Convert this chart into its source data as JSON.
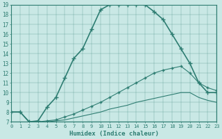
{
  "xlabel": "Humidex (Indice chaleur)",
  "xlim": [
    0,
    23
  ],
  "ylim": [
    7,
    19
  ],
  "yticks": [
    7,
    8,
    9,
    10,
    11,
    12,
    13,
    14,
    15,
    16,
    17,
    18,
    19
  ],
  "xticks": [
    0,
    1,
    2,
    3,
    4,
    5,
    6,
    7,
    8,
    9,
    10,
    11,
    12,
    13,
    14,
    15,
    16,
    17,
    18,
    19,
    20,
    21,
    22,
    23
  ],
  "bg_color": "#c9e8e5",
  "line_color": "#2e7d72",
  "series": [
    {
      "x": [
        0,
        1,
        2,
        3,
        4,
        5,
        6,
        7,
        8,
        9,
        10,
        11,
        12,
        13,
        14,
        15,
        16,
        17,
        18,
        19,
        20,
        21,
        22,
        23
      ],
      "y": [
        8,
        8,
        7,
        7.1,
        8.5,
        9.5,
        11.5,
        13.5,
        14.5,
        16.5,
        18.5,
        19,
        19,
        19,
        19,
        19,
        18.3,
        17.5,
        16,
        14.5,
        13,
        11,
        10,
        10
      ],
      "marker": "+",
      "markersize": 5,
      "linewidth": 1.2,
      "color": "#2e7d72"
    },
    {
      "x": [
        0,
        1,
        2,
        3,
        4,
        5,
        6,
        7,
        8,
        9,
        10,
        11,
        12,
        13,
        14,
        15,
        16,
        17,
        18,
        19,
        20,
        21,
        22,
        23
      ],
      "y": [
        8,
        8,
        7,
        7,
        7.1,
        7.2,
        7.5,
        7.8,
        8.2,
        8.6,
        9.0,
        9.5,
        10.0,
        10.5,
        11.0,
        11.5,
        12.0,
        12.3,
        12.5,
        12.7,
        12.0,
        11.0,
        10.5,
        10.2
      ],
      "marker": "+",
      "markersize": 3,
      "linewidth": 0.8,
      "color": "#2e7d72"
    },
    {
      "x": [
        0,
        1,
        2,
        3,
        4,
        5,
        6,
        7,
        8,
        9,
        10,
        11,
        12,
        13,
        14,
        15,
        16,
        17,
        18,
        19,
        20,
        21,
        22,
        23
      ],
      "y": [
        8,
        8,
        7,
        7,
        7,
        7.1,
        7.2,
        7.4,
        7.6,
        7.8,
        8.0,
        8.3,
        8.5,
        8.7,
        9.0,
        9.2,
        9.4,
        9.6,
        9.8,
        10.0,
        10.0,
        9.5,
        9.2,
        9.0
      ],
      "marker": null,
      "markersize": 0,
      "linewidth": 0.8,
      "color": "#2e7d72"
    }
  ]
}
